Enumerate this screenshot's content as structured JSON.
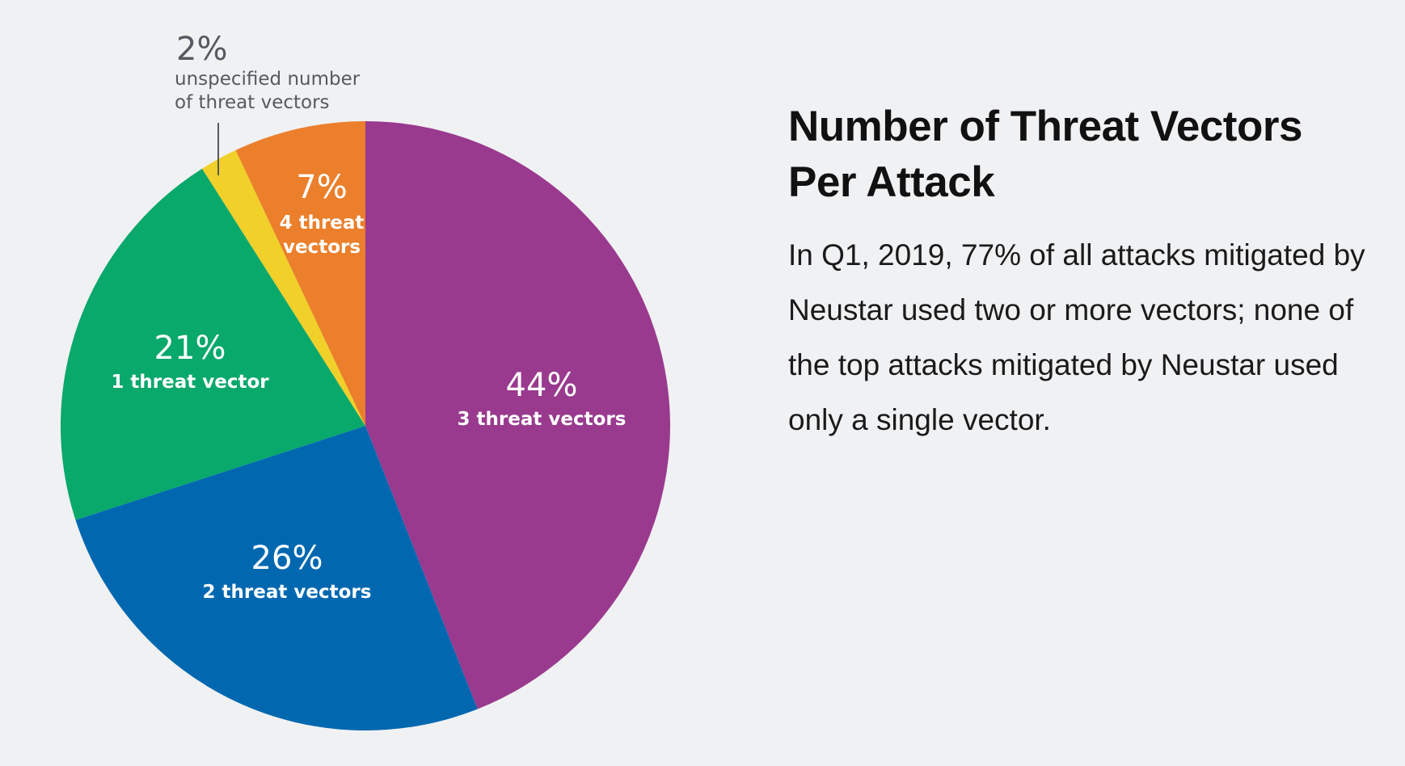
{
  "chart_data": {
    "type": "pie",
    "start_angle": "12 o'clock",
    "direction": "clockwise",
    "slices": [
      {
        "value": 44,
        "pct_label": "44%",
        "label_lines": [
          "3 threat vectors"
        ],
        "color": "#993a8e"
      },
      {
        "value": 26,
        "pct_label": "26%",
        "label_lines": [
          "2 threat vectors"
        ],
        "color": "#0168b0"
      },
      {
        "value": 21,
        "pct_label": "21%",
        "label_lines": [
          "1 threat vector"
        ],
        "color": "#09a86b"
      },
      {
        "value": 2,
        "pct_label": "2%",
        "label_lines": [
          "unspecified number",
          "of threat vectors"
        ],
        "color": "#f1d029",
        "label_outside": true
      },
      {
        "value": 7,
        "pct_label": "7%",
        "label_lines": [
          "4 threat",
          "vectors"
        ],
        "color": "#eb7f2b"
      }
    ]
  },
  "heading": {
    "title_line1": "Number of Threat Vectors",
    "title_line2": "Per Attack"
  },
  "body": {
    "paragraph": "In Q1, 2019, 77% of all attacks mitigated by Neustar used two or more vectors; none of the top attacks mitigated by Neustar used only a single vector."
  }
}
